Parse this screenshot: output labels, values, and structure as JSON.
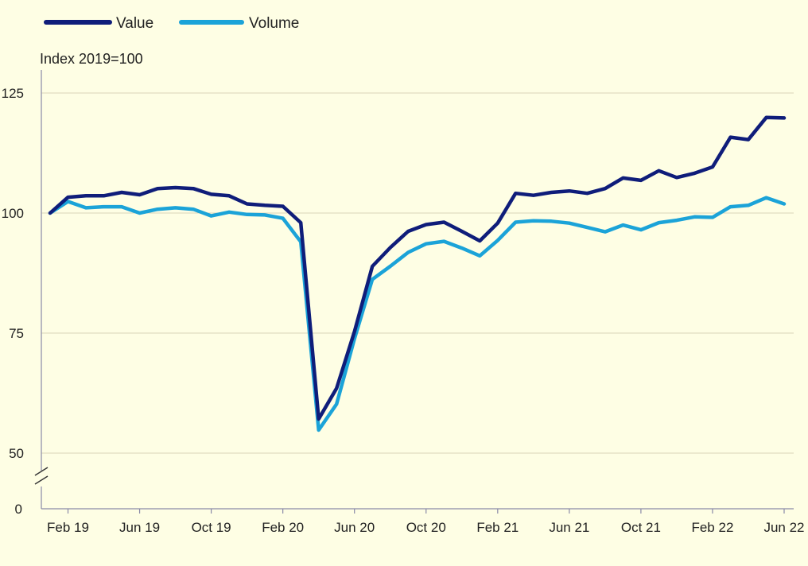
{
  "chart_data": {
    "type": "line",
    "ylabel": "Index 2019=100",
    "y_ticks": [
      0,
      50,
      75,
      100,
      125
    ],
    "y_axis_break": "between 0 and 50",
    "x_tick_labels": [
      "Feb 19",
      "Jun 19",
      "Oct 19",
      "Feb 20",
      "Jun 20",
      "Oct 20",
      "Feb 21",
      "Jun 21",
      "Oct 21",
      "Feb 22",
      "Jun 22"
    ],
    "grid": "horizontal",
    "legend_position": "top-left",
    "x": [
      "Jan 19",
      "Feb 19",
      "Mar 19",
      "Apr 19",
      "May 19",
      "Jun 19",
      "Jul 19",
      "Aug 19",
      "Sep 19",
      "Oct 19",
      "Nov 19",
      "Dec 19",
      "Jan 20",
      "Feb 20",
      "Mar 20",
      "Apr 20",
      "May 20",
      "Jun 20",
      "Jul 20",
      "Aug 20",
      "Sep 20",
      "Oct 20",
      "Nov 20",
      "Dec 20",
      "Jan 21",
      "Feb 21",
      "Mar 21",
      "Apr 21",
      "May 21",
      "Jun 21",
      "Jul 21",
      "Aug 21",
      "Sep 21",
      "Oct 21",
      "Nov 21",
      "Dec 21",
      "Jan 22",
      "Feb 22",
      "Mar 22",
      "Apr 22",
      "May 22",
      "Jun 22"
    ],
    "series": [
      {
        "name": "Value",
        "color": "#0f1d7a",
        "values": [
          100,
          103.3,
          103.6,
          103.6,
          104.3,
          103.8,
          105.1,
          105.3,
          105.1,
          103.9,
          103.6,
          101.9,
          101.6,
          101.4,
          98.0,
          57.1,
          63.5,
          75.3,
          88.9,
          92.8,
          96.2,
          97.6,
          98.1,
          96.2,
          94.2,
          97.9,
          104.1,
          103.7,
          104.3,
          104.6,
          104.1,
          105.1,
          107.3,
          106.8,
          108.8,
          107.4,
          108.3,
          109.6,
          115.8,
          115.3,
          119.9,
          119.8
        ]
      },
      {
        "name": "Volume",
        "color": "#1ba3d8",
        "values": [
          100,
          102.4,
          101.1,
          101.3,
          101.3,
          100.0,
          100.8,
          101.1,
          100.8,
          99.4,
          100.2,
          99.7,
          99.6,
          98.9,
          94.0,
          54.8,
          60.2,
          73.8,
          86.2,
          88.9,
          91.8,
          93.6,
          94.1,
          92.7,
          91.1,
          94.3,
          98.1,
          98.4,
          98.3,
          97.9,
          97.0,
          96.1,
          97.5,
          96.5,
          98.0,
          98.5,
          99.2,
          99.1,
          101.3,
          101.6,
          103.2,
          101.9
        ]
      }
    ]
  }
}
